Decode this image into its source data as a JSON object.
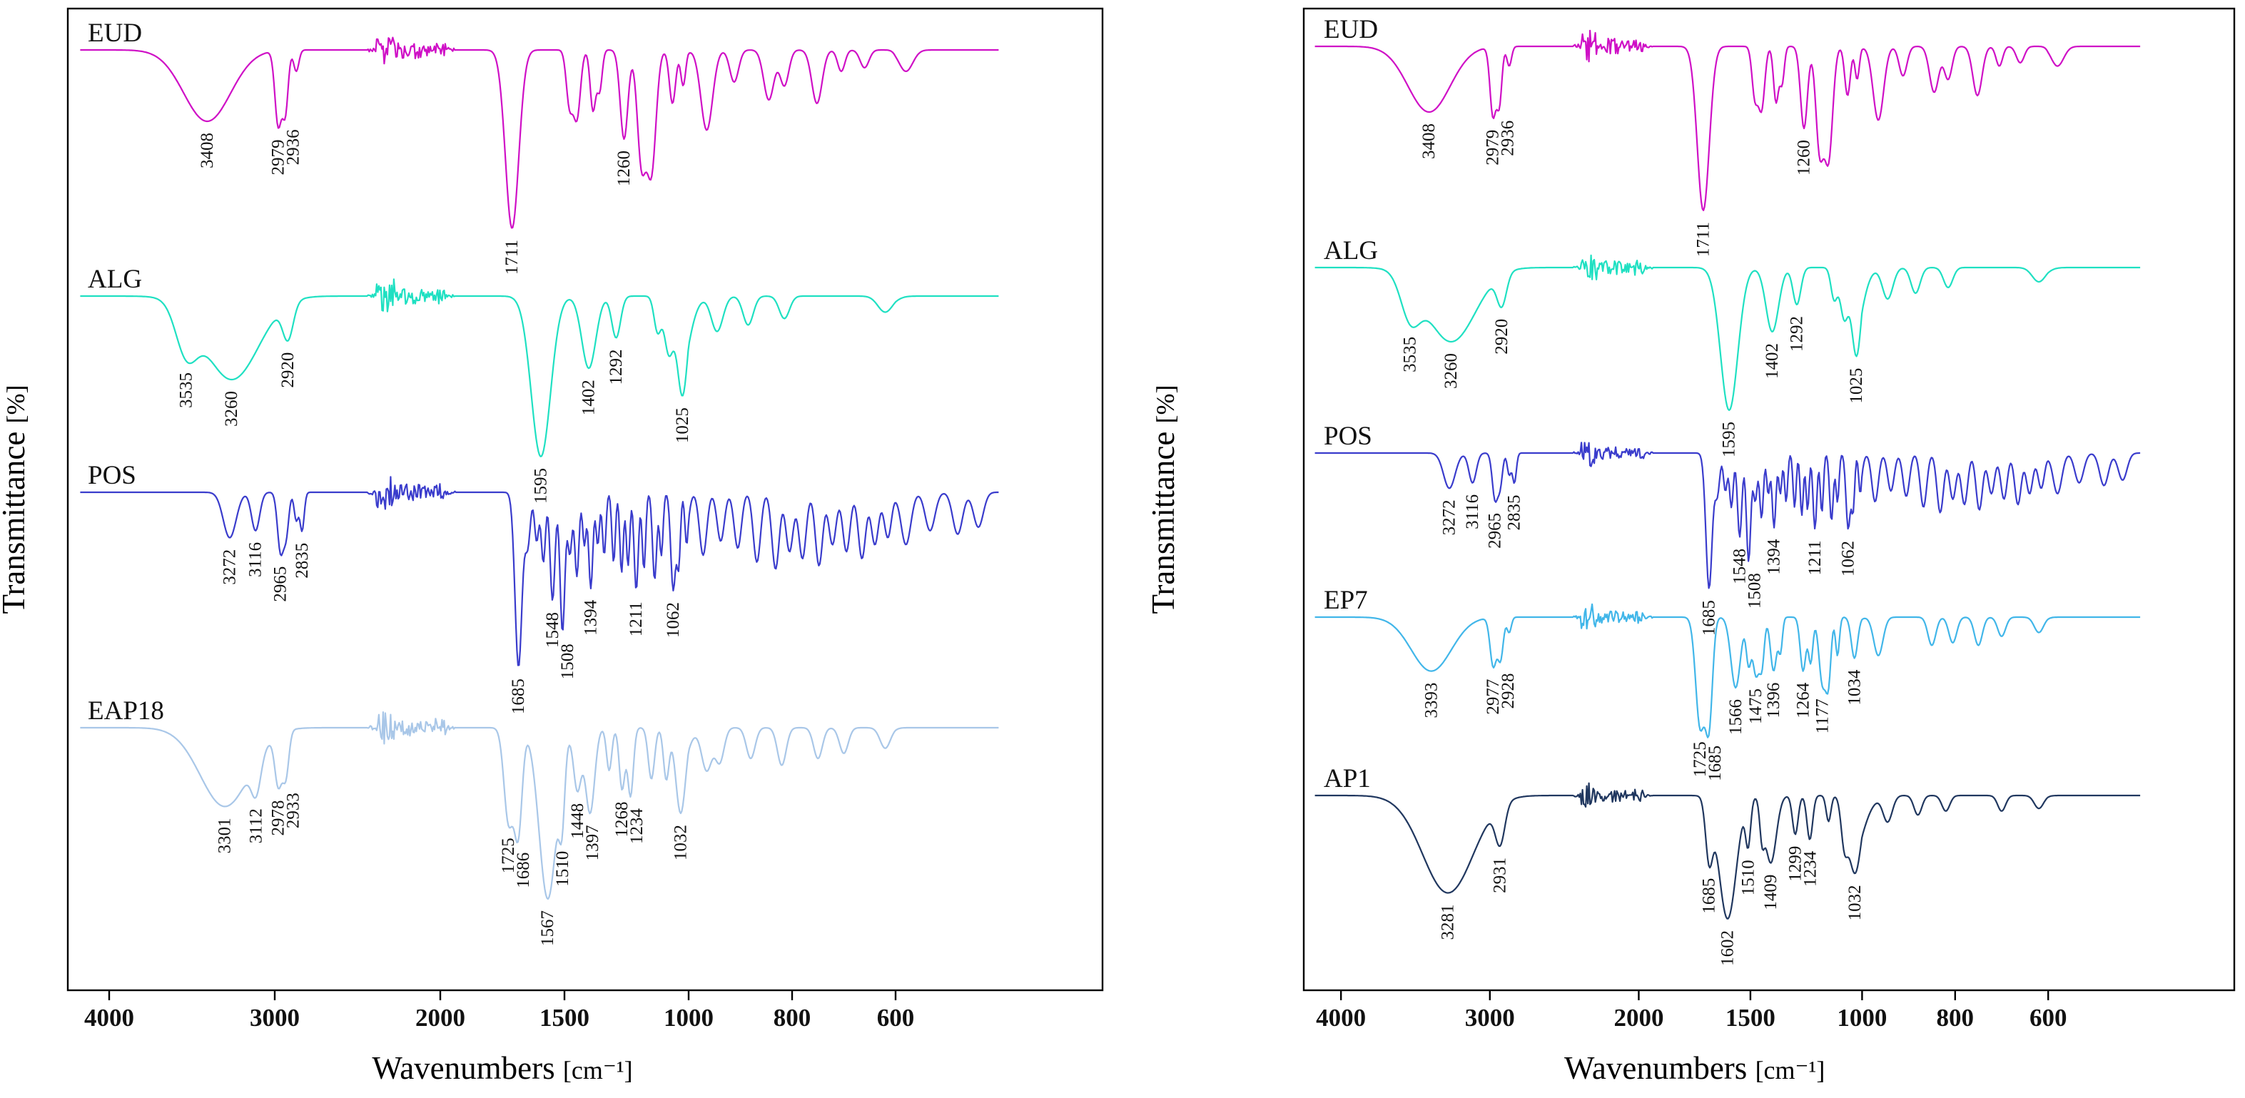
{
  "figure": {
    "background": "#ffffff",
    "description": "Two-panel FTIR transmittance spectra figure"
  },
  "chart_data": {
    "type": "line",
    "kind": "FTIR transmittance spectra (stacked traces, two panels)",
    "x_axis": {
      "label": "Wavenumbers [cm⁻¹]",
      "label_main": "Wavenumbers",
      "label_unit": "[cm⁻¹]",
      "ticks": [
        4000,
        3000,
        2000,
        1500,
        1000,
        800,
        600
      ],
      "range_start": 4150,
      "range_end": 450,
      "direction": "decreasing"
    },
    "y_axis": {
      "label": "Transmittance [%]",
      "label_main": "Transmittance",
      "label_unit": "[%]"
    },
    "spectra": {
      "EUD": {
        "color": "#cf10c6",
        "labeled_peaks": [
          3408,
          2979,
          2936,
          1711,
          1260
        ],
        "peaks": [
          [
            3408,
            0.4,
            200
          ],
          [
            2979,
            0.42,
            28
          ],
          [
            2936,
            0.34,
            24
          ],
          [
            2870,
            0.12,
            22
          ],
          [
            1711,
            1.0,
            38
          ],
          [
            1480,
            0.3,
            18
          ],
          [
            1450,
            0.38,
            20
          ],
          [
            1385,
            0.34,
            16
          ],
          [
            1358,
            0.22,
            14
          ],
          [
            1260,
            0.5,
            22
          ],
          [
            1190,
            0.62,
            24
          ],
          [
            1150,
            0.68,
            26
          ],
          [
            1065,
            0.3,
            18
          ],
          [
            1022,
            0.2,
            14
          ],
          [
            965,
            0.45,
            16
          ],
          [
            912,
            0.18,
            12
          ],
          [
            845,
            0.28,
            14
          ],
          [
            815,
            0.2,
            12
          ],
          [
            752,
            0.3,
            14
          ],
          [
            705,
            0.12,
            10
          ],
          [
            660,
            0.1,
            12
          ],
          [
            585,
            0.12,
            14
          ]
        ]
      },
      "ALG": {
        "color": "#1fe0c2",
        "labeled_peaks": [
          3535,
          3260,
          2920,
          1595,
          1402,
          1292,
          1025
        ],
        "peaks": [
          [
            3535,
            0.28,
            90
          ],
          [
            3260,
            0.52,
            230
          ],
          [
            2920,
            0.22,
            45
          ],
          [
            1595,
            1.0,
            55
          ],
          [
            1402,
            0.45,
            40
          ],
          [
            1292,
            0.26,
            25
          ],
          [
            1125,
            0.22,
            20
          ],
          [
            1080,
            0.35,
            25
          ],
          [
            1025,
            0.62,
            30
          ],
          [
            945,
            0.22,
            16
          ],
          [
            885,
            0.18,
            14
          ],
          [
            815,
            0.14,
            14
          ],
          [
            620,
            0.1,
            20
          ]
        ]
      },
      "POS": {
        "color": "#3a3ccc",
        "labeled_peaks": [
          3272,
          3116,
          2965,
          2835,
          1685,
          1548,
          1508,
          1394,
          1211,
          1062
        ],
        "peaks": [
          [
            3272,
            0.26,
            55
          ],
          [
            3116,
            0.22,
            35
          ],
          [
            2965,
            0.34,
            26
          ],
          [
            2930,
            0.22,
            22
          ],
          [
            2870,
            0.16,
            18
          ],
          [
            2835,
            0.22,
            18
          ],
          [
            1685,
            1.0,
            20
          ],
          [
            1648,
            0.3,
            15
          ],
          [
            1612,
            0.28,
            12
          ],
          [
            1585,
            0.4,
            12
          ],
          [
            1548,
            0.62,
            14
          ],
          [
            1508,
            0.8,
            14
          ],
          [
            1478,
            0.35,
            12
          ],
          [
            1450,
            0.48,
            12
          ],
          [
            1420,
            0.3,
            10
          ],
          [
            1394,
            0.55,
            12
          ],
          [
            1366,
            0.3,
            10
          ],
          [
            1340,
            0.36,
            10
          ],
          [
            1302,
            0.4,
            10
          ],
          [
            1270,
            0.46,
            10
          ],
          [
            1244,
            0.42,
            10
          ],
          [
            1211,
            0.56,
            12
          ],
          [
            1180,
            0.44,
            10
          ],
          [
            1137,
            0.5,
            12
          ],
          [
            1110,
            0.36,
            10
          ],
          [
            1062,
            0.56,
            14
          ],
          [
            1040,
            0.4,
            10
          ],
          [
            1008,
            0.3,
            10
          ],
          [
            972,
            0.36,
            10
          ],
          [
            938,
            0.28,
            10
          ],
          [
            905,
            0.32,
            10
          ],
          [
            868,
            0.4,
            10
          ],
          [
            832,
            0.44,
            10
          ],
          [
            805,
            0.34,
            10
          ],
          [
            780,
            0.38,
            10
          ],
          [
            748,
            0.42,
            10
          ],
          [
            722,
            0.3,
            10
          ],
          [
            695,
            0.34,
            10
          ],
          [
            665,
            0.38,
            10
          ],
          [
            640,
            0.3,
            10
          ],
          [
            615,
            0.26,
            10
          ],
          [
            585,
            0.3,
            10
          ],
          [
            550,
            0.22,
            10
          ],
          [
            510,
            0.24,
            10
          ],
          [
            480,
            0.2,
            10
          ]
        ]
      },
      "EAP18": {
        "color": "#a9c7e8",
        "labeled_peaks": [
          3301,
          3112,
          2978,
          2933,
          1725,
          1686,
          1567,
          1510,
          1448,
          1397,
          1268,
          1234,
          1032
        ],
        "peaks": [
          [
            3301,
            0.46,
            210
          ],
          [
            3112,
            0.2,
            40
          ],
          [
            2978,
            0.3,
            30
          ],
          [
            2933,
            0.26,
            26
          ],
          [
            1725,
            0.55,
            26
          ],
          [
            1686,
            0.6,
            22
          ],
          [
            1567,
            1.0,
            50
          ],
          [
            1510,
            0.38,
            16
          ],
          [
            1448,
            0.36,
            22
          ],
          [
            1397,
            0.5,
            26
          ],
          [
            1320,
            0.25,
            15
          ],
          [
            1268,
            0.36,
            16
          ],
          [
            1234,
            0.4,
            16
          ],
          [
            1150,
            0.3,
            18
          ],
          [
            1090,
            0.3,
            16
          ],
          [
            1032,
            0.5,
            28
          ],
          [
            965,
            0.25,
            14
          ],
          [
            940,
            0.2,
            12
          ],
          [
            880,
            0.18,
            12
          ],
          [
            820,
            0.22,
            12
          ],
          [
            750,
            0.18,
            12
          ],
          [
            700,
            0.15,
            12
          ],
          [
            620,
            0.12,
            14
          ]
        ]
      },
      "EP7": {
        "color": "#41b6e9",
        "labeled_peaks": [
          3393,
          2977,
          2928,
          1725,
          1685,
          1566,
          1475,
          1396,
          1264,
          1177,
          1034
        ],
        "peaks": [
          [
            3393,
            0.42,
            190
          ],
          [
            2977,
            0.38,
            30
          ],
          [
            2928,
            0.32,
            26
          ],
          [
            2870,
            0.12,
            20
          ],
          [
            1725,
            0.85,
            28
          ],
          [
            1685,
            0.8,
            22
          ],
          [
            1566,
            0.55,
            30
          ],
          [
            1508,
            0.35,
            15
          ],
          [
            1475,
            0.45,
            20
          ],
          [
            1448,
            0.35,
            15
          ],
          [
            1396,
            0.42,
            20
          ],
          [
            1365,
            0.25,
            12
          ],
          [
            1264,
            0.42,
            18
          ],
          [
            1230,
            0.35,
            14
          ],
          [
            1177,
            0.52,
            22
          ],
          [
            1150,
            0.45,
            16
          ],
          [
            1110,
            0.3,
            12
          ],
          [
            1034,
            0.32,
            20
          ],
          [
            965,
            0.3,
            14
          ],
          [
            850,
            0.22,
            12
          ],
          [
            805,
            0.2,
            12
          ],
          [
            750,
            0.22,
            12
          ],
          [
            700,
            0.15,
            12
          ],
          [
            620,
            0.12,
            14
          ]
        ]
      },
      "AP1": {
        "color": "#20375f",
        "labeled_peaks": [
          3281,
          2931,
          1685,
          1602,
          1510,
          1409,
          1299,
          1234,
          1032
        ],
        "peaks": [
          [
            3281,
            0.75,
            240
          ],
          [
            2931,
            0.3,
            45
          ],
          [
            1685,
            0.45,
            22
          ],
          [
            1602,
            0.95,
            55
          ],
          [
            1510,
            0.35,
            16
          ],
          [
            1448,
            0.25,
            14
          ],
          [
            1409,
            0.52,
            35
          ],
          [
            1299,
            0.3,
            18
          ],
          [
            1234,
            0.34,
            18
          ],
          [
            1150,
            0.2,
            15
          ],
          [
            1080,
            0.3,
            20
          ],
          [
            1032,
            0.6,
            40
          ],
          [
            945,
            0.2,
            14
          ],
          [
            880,
            0.15,
            12
          ],
          [
            820,
            0.12,
            12
          ],
          [
            700,
            0.12,
            12
          ],
          [
            620,
            0.1,
            14
          ]
        ]
      }
    },
    "panels": [
      {
        "id": "A",
        "series": [
          {
            "ref": "EUD",
            "baseline": 70,
            "amplitude": 250
          },
          {
            "ref": "ALG",
            "baseline": 415,
            "amplitude": 225
          },
          {
            "ref": "POS",
            "baseline": 690,
            "amplitude": 245
          },
          {
            "ref": "EAP18",
            "baseline": 1020,
            "amplitude": 240
          }
        ]
      },
      {
        "id": "B",
        "series": [
          {
            "ref": "EUD",
            "baseline": 65,
            "amplitude": 230
          },
          {
            "ref": "ALG",
            "baseline": 375,
            "amplitude": 200
          },
          {
            "ref": "POS",
            "baseline": 635,
            "amplitude": 190
          },
          {
            "ref": "EP7",
            "baseline": 865,
            "amplitude": 180
          },
          {
            "ref": "AP1",
            "baseline": 1115,
            "amplitude": 182
          }
        ]
      }
    ]
  }
}
